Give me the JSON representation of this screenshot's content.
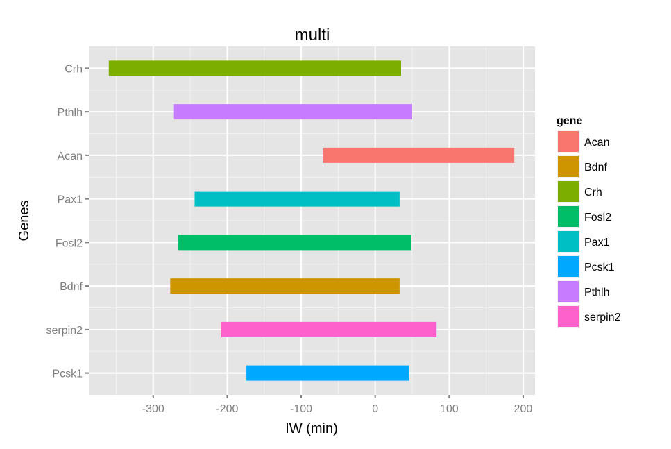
{
  "chart_data": {
    "type": "bar",
    "orientation": "horizontal-range",
    "title": "multi",
    "xlabel": "IW (min)",
    "ylabel": "Genes",
    "xlim": [
      -387,
      216
    ],
    "x_ticks": [
      -300,
      -200,
      -100,
      0,
      100,
      200
    ],
    "x_tick_labels": [
      "-300",
      "-200",
      "-100",
      "0",
      "100",
      "200"
    ],
    "x_minor": [
      -350,
      -250,
      -150,
      -50,
      50,
      150
    ],
    "categories": [
      "Crh",
      "Pthlh",
      "Acan",
      "Pax1",
      "Fosl2",
      "Bdnf",
      "serpin2",
      "Pcsk1"
    ],
    "series": [
      {
        "name": "Crh",
        "start": -360,
        "end": 35,
        "color": "#7CAE00"
      },
      {
        "name": "Pthlh",
        "start": -272,
        "end": 50,
        "color": "#C77CFF"
      },
      {
        "name": "Acan",
        "start": -70,
        "end": 188,
        "color": "#F8766D"
      },
      {
        "name": "Pax1",
        "start": -244,
        "end": 33,
        "color": "#00BFC4"
      },
      {
        "name": "Fosl2",
        "start": -266,
        "end": 49,
        "color": "#00BE67"
      },
      {
        "name": "Bdnf",
        "start": -277,
        "end": 33,
        "color": "#CD9600"
      },
      {
        "name": "serpin2",
        "start": -208,
        "end": 83,
        "color": "#FF61CC"
      },
      {
        "name": "Pcsk1",
        "start": -174,
        "end": 46,
        "color": "#00A9FF"
      }
    ],
    "legend": {
      "title": "gene",
      "position": "right",
      "entries": [
        {
          "label": "Acan",
          "color": "#F8766D"
        },
        {
          "label": "Bdnf",
          "color": "#CD9600"
        },
        {
          "label": "Crh",
          "color": "#7CAE00"
        },
        {
          "label": "Fosl2",
          "color": "#00BE67"
        },
        {
          "label": "Pax1",
          "color": "#00BFC4"
        },
        {
          "label": "Pcsk1",
          "color": "#00A9FF"
        },
        {
          "label": "Pthlh",
          "color": "#C77CFF"
        },
        {
          "label": "serpin2",
          "color": "#FF61CC"
        }
      ]
    },
    "grid": true,
    "panel_background": "#E5E5E5"
  }
}
